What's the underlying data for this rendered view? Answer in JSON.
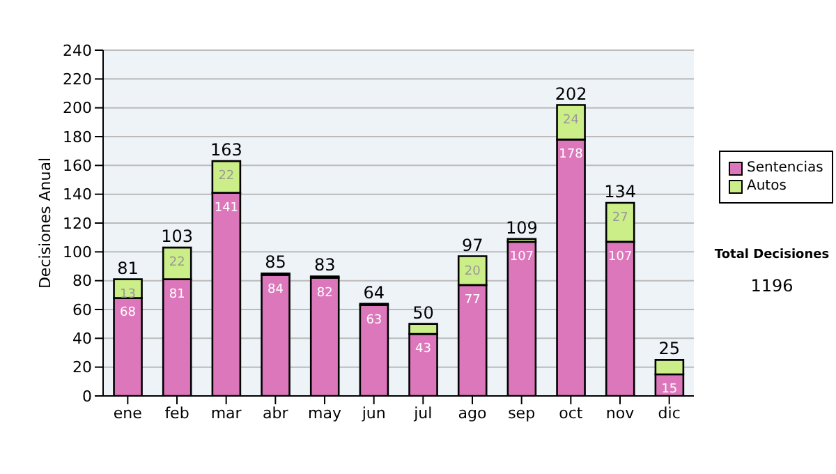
{
  "chart_data": {
    "type": "bar",
    "stacked": true,
    "ylabel": "Decisiones Anual",
    "categories": [
      "ene",
      "feb",
      "mar",
      "abr",
      "may",
      "jun",
      "jul",
      "ago",
      "sep",
      "oct",
      "nov",
      "dic"
    ],
    "series": [
      {
        "name": "Sentencias",
        "color": "#dd77bb",
        "values": [
          68,
          81,
          141,
          84,
          82,
          63,
          43,
          77,
          107,
          178,
          107,
          15
        ],
        "value_labels": [
          "68",
          "81",
          "141",
          "84",
          "82",
          "63",
          "43",
          "77",
          "107",
          "178",
          "107",
          "15"
        ]
      },
      {
        "name": "Autos",
        "color": "#ccee88",
        "values": [
          13,
          22,
          22,
          1,
          1,
          1,
          7,
          20,
          2,
          24,
          27,
          10
        ],
        "value_labels": [
          "13",
          "22",
          "22",
          null,
          null,
          null,
          null,
          "20",
          null,
          "24",
          "27",
          null
        ]
      }
    ],
    "totals": [
      "81",
      "103",
      "163",
      "85",
      "83",
      "64",
      "50",
      "97",
      "109",
      "202",
      "134",
      "25"
    ],
    "ylim": [
      0,
      240
    ],
    "yticks": [
      0,
      20,
      40,
      60,
      80,
      100,
      120,
      140,
      160,
      180,
      200,
      220,
      240
    ],
    "grid": "y",
    "legend": "right",
    "annotations": [
      "Total Decisiones",
      "1196"
    ]
  }
}
